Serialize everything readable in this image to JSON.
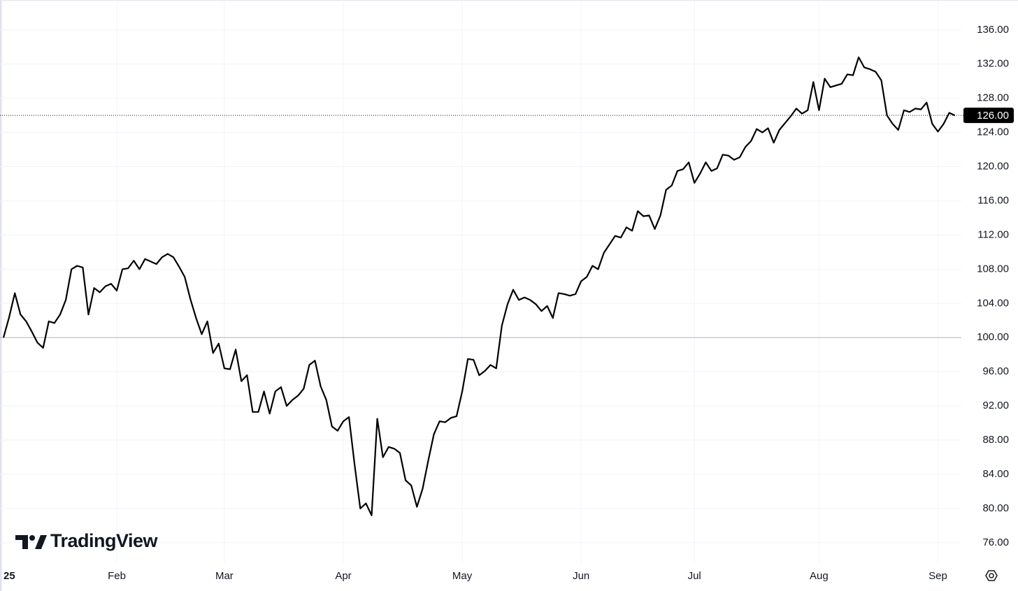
{
  "chart_data": {
    "type": "line",
    "watermark": "TradingView",
    "color": "#000000",
    "grid": true,
    "categories": [
      "25",
      null,
      null,
      null,
      null,
      null,
      null,
      null,
      null,
      null,
      null,
      null,
      null,
      null,
      null,
      null,
      null,
      null,
      null,
      null,
      "Feb",
      null,
      null,
      null,
      null,
      null,
      null,
      null,
      null,
      null,
      null,
      null,
      null,
      null,
      null,
      null,
      null,
      null,
      null,
      "Mar",
      null,
      null,
      null,
      null,
      null,
      null,
      null,
      null,
      null,
      null,
      null,
      null,
      null,
      null,
      null,
      null,
      null,
      null,
      null,
      null,
      "Apr",
      null,
      null,
      null,
      null,
      null,
      null,
      null,
      null,
      null,
      null,
      null,
      null,
      null,
      null,
      null,
      null,
      null,
      null,
      null,
      null,
      "May",
      null,
      null,
      null,
      null,
      null,
      null,
      null,
      null,
      null,
      null,
      null,
      null,
      null,
      null,
      null,
      null,
      null,
      null,
      null,
      null,
      "Jun",
      null,
      null,
      null,
      null,
      null,
      null,
      null,
      null,
      null,
      null,
      null,
      null,
      null,
      null,
      null,
      null,
      null,
      null,
      null,
      "Jul",
      null,
      null,
      null,
      null,
      null,
      null,
      null,
      null,
      null,
      null,
      null,
      null,
      null,
      null,
      null,
      null,
      null,
      null,
      null,
      null,
      null,
      "Aug",
      null,
      null,
      null,
      null,
      null,
      null,
      null,
      null,
      null,
      null,
      null,
      null,
      null,
      null,
      null,
      null,
      null,
      null,
      null,
      null,
      "Sep",
      null,
      null,
      null
    ],
    "values": [
      100,
      102.4,
      105.2,
      102.7,
      101.9,
      100.7,
      99.4,
      98.8,
      101.9,
      101.7,
      102.7,
      104.4,
      108.0,
      108.4,
      108.2,
      102.7,
      105.8,
      105.3,
      106.0,
      106.3,
      105.5,
      108.0,
      108.1,
      109.0,
      108.0,
      109.2,
      108.9,
      108.6,
      109.4,
      109.8,
      109.4,
      108.3,
      107.1,
      104.5,
      102.3,
      100.4,
      101.9,
      98.2,
      99.3,
      96.4,
      96.3,
      98.6,
      94.9,
      95.6,
      91.3,
      91.3,
      93.7,
      91.1,
      93.7,
      94.2,
      92.0,
      92.7,
      93.2,
      94.0,
      96.8,
      97.3,
      94.3,
      92.7,
      89.6,
      89.1,
      90.2,
      90.7,
      85.1,
      80.0,
      80.6,
      79.2,
      90.5,
      86.0,
      87.2,
      87.0,
      86.5,
      83.3,
      82.7,
      80.2,
      82.3,
      85.6,
      88.7,
      90.2,
      90.1,
      90.6,
      90.8,
      93.7,
      97.5,
      97.4,
      95.6,
      96.1,
      96.8,
      96.4,
      101.4,
      103.9,
      105.6,
      104.4,
      104.7,
      104.4,
      103.9,
      103.1,
      103.7,
      102.3,
      105.2,
      105.1,
      104.9,
      105.1,
      106.6,
      107.1,
      108.4,
      108.0,
      109.9,
      110.9,
      111.9,
      111.7,
      112.9,
      112.5,
      114.8,
      114.2,
      114.3,
      112.7,
      114.3,
      117.3,
      117.8,
      119.5,
      119.7,
      120.5,
      118.1,
      119.2,
      120.5,
      119.5,
      119.8,
      121.4,
      121.3,
      120.8,
      121.1,
      122.3,
      123.0,
      124.4,
      124.0,
      124.5,
      122.8,
      124.3,
      125.1,
      125.9,
      126.8,
      126.2,
      126.6,
      129.9,
      126.6,
      130.3,
      129.3,
      129.5,
      129.7,
      130.8,
      130.7,
      132.8,
      131.6,
      131.4,
      131.1,
      130.1,
      126.0,
      125.0,
      124.3,
      126.6,
      126.4,
      126.8,
      126.7,
      127.5,
      125.0,
      124.1,
      125.0,
      126.3,
      126.0
    ],
    "ylim": [
      73.7,
      139.5
    ],
    "yticks": [
      {
        "value": 76,
        "label": "76.00"
      },
      {
        "value": 80,
        "label": "80.00"
      },
      {
        "value": 84,
        "label": "84.00"
      },
      {
        "value": 88,
        "label": "88.00"
      },
      {
        "value": 92,
        "label": "92.00"
      },
      {
        "value": 96,
        "label": "96.00"
      },
      {
        "value": 100,
        "label": "100.00"
      },
      {
        "value": 104,
        "label": "104.00"
      },
      {
        "value": 108,
        "label": "108.00"
      },
      {
        "value": 112,
        "label": "112.00"
      },
      {
        "value": 116,
        "label": "116.00"
      },
      {
        "value": 120,
        "label": "120.00"
      },
      {
        "value": 124,
        "label": "124.00"
      },
      {
        "value": 128,
        "label": "128.00"
      },
      {
        "value": 132,
        "label": "132.00"
      },
      {
        "value": 136,
        "label": "136.00"
      }
    ],
    "baseline": 100,
    "last_price": {
      "value": 126,
      "label": "126.00"
    }
  }
}
